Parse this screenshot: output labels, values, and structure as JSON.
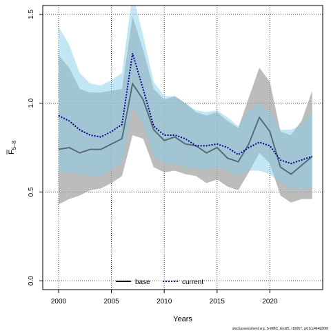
{
  "chart_data": {
    "type": "line",
    "xlabel": "Years",
    "ylabel": "F",
    "ylabel_subscript": "5–8",
    "xlim": [
      1998.5,
      2025
    ],
    "ylim": [
      -0.05,
      1.55
    ],
    "x_ticks": [
      2000,
      2005,
      2010,
      2015,
      2020
    ],
    "y_ticks": [
      0.0,
      0.5,
      1.0,
      1.5
    ],
    "y_tick_labels": [
      "0.0",
      "0.5",
      "1.0",
      "1.5"
    ],
    "grid": true,
    "legend_position": "bottom-center",
    "x": [
      2000,
      2001,
      2002,
      2003,
      2004,
      2005,
      2006,
      2007,
      2008,
      2009,
      2010,
      2011,
      2012,
      2013,
      2014,
      2015,
      2016,
      2017,
      2018,
      2019,
      2020,
      2021,
      2022,
      2023,
      2024
    ],
    "series": [
      {
        "name": "base",
        "style": "solid",
        "color": "#000000",
        "band_color": "#a6a6a6",
        "values": [
          0.74,
          0.75,
          0.72,
          0.74,
          0.74,
          0.77,
          0.8,
          1.11,
          1.02,
          0.85,
          0.79,
          0.81,
          0.77,
          0.76,
          0.72,
          0.75,
          0.69,
          0.67,
          0.77,
          0.92,
          0.84,
          0.64,
          0.6,
          0.65,
          0.7
        ],
        "lower": [
          0.43,
          0.46,
          0.48,
          0.51,
          0.52,
          0.55,
          0.59,
          0.82,
          0.8,
          0.64,
          0.61,
          0.62,
          0.6,
          0.59,
          0.55,
          0.57,
          0.53,
          0.51,
          0.61,
          0.72,
          0.66,
          0.48,
          0.44,
          0.46,
          0.46
        ],
        "upper": [
          1.27,
          1.2,
          1.08,
          1.06,
          1.06,
          1.07,
          1.08,
          1.49,
          1.3,
          1.08,
          1.02,
          1.04,
          1.0,
          0.95,
          0.93,
          0.95,
          0.9,
          0.86,
          1.03,
          1.2,
          1.12,
          0.84,
          0.82,
          0.9,
          1.07
        ]
      },
      {
        "name": "current",
        "style": "dotted",
        "color": "#00008b",
        "band_color": "#87ceeb",
        "values": [
          0.93,
          0.9,
          0.85,
          0.82,
          0.81,
          0.84,
          0.88,
          1.28,
          1.08,
          0.87,
          0.82,
          0.82,
          0.8,
          0.76,
          0.76,
          0.77,
          0.75,
          0.71,
          0.75,
          0.78,
          0.76,
          0.68,
          0.66,
          0.68,
          0.7
        ],
        "lower": [
          0.61,
          0.61,
          0.6,
          0.59,
          0.59,
          0.63,
          0.67,
          0.98,
          0.88,
          0.7,
          0.66,
          0.66,
          0.64,
          0.63,
          0.63,
          0.64,
          0.62,
          0.59,
          0.62,
          0.62,
          0.6,
          0.55,
          0.52,
          0.52,
          0.52
        ],
        "upper": [
          1.43,
          1.33,
          1.17,
          1.11,
          1.1,
          1.13,
          1.17,
          1.62,
          1.38,
          1.12,
          1.04,
          1.04,
          1.0,
          0.96,
          0.95,
          0.96,
          0.92,
          0.87,
          0.96,
          1.0,
          0.95,
          0.85,
          0.85,
          0.88,
          0.95
        ]
      }
    ]
  },
  "footer_text": "stockassessment.org, S-WBC_test25, r19057, git:1cc464b806f"
}
